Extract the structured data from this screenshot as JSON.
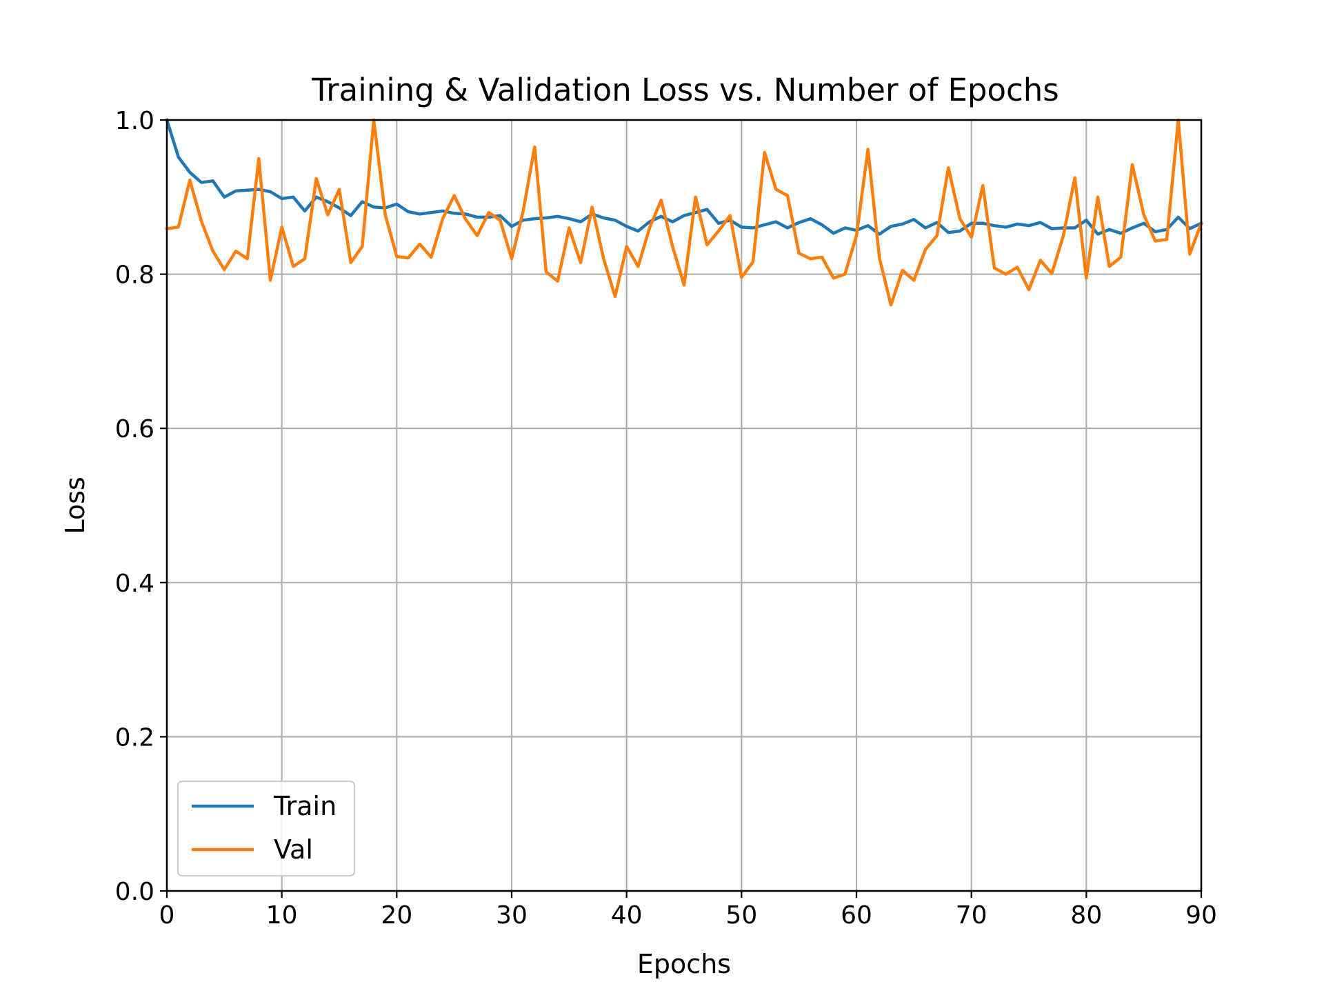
{
  "chart_data": {
    "type": "line",
    "title": "Training & Validation Loss vs. Number of Epochs",
    "xlabel": "Epochs",
    "ylabel": "Loss",
    "xlim": [
      0,
      90
    ],
    "ylim": [
      0.0,
      1.0
    ],
    "xticks": [
      0,
      10,
      20,
      30,
      40,
      50,
      60,
      70,
      80,
      90
    ],
    "xtick_labels": [
      "0",
      "10",
      "20",
      "30",
      "40",
      "50",
      "60",
      "70",
      "80",
      "90"
    ],
    "yticks": [
      0.0,
      0.2,
      0.4,
      0.6,
      0.8,
      1.0
    ],
    "ytick_labels": [
      "0.0",
      "0.2",
      "0.4",
      "0.6",
      "0.8",
      "1.0"
    ],
    "grid": true,
    "legend_position": "lower-left",
    "series": [
      {
        "name": "Train",
        "color": "#1f77b4",
        "x": [
          0,
          1,
          2,
          3,
          4,
          5,
          6,
          7,
          8,
          9,
          10,
          11,
          12,
          13,
          14,
          15,
          16,
          17,
          18,
          19,
          20,
          21,
          22,
          23,
          24,
          25,
          26,
          27,
          28,
          29,
          30,
          31,
          32,
          33,
          34,
          35,
          36,
          37,
          38,
          39,
          40,
          41,
          42,
          43,
          44,
          45,
          46,
          47,
          48,
          49,
          50,
          51,
          52,
          53,
          54,
          55,
          56,
          57,
          58,
          59,
          60,
          61,
          62,
          63,
          64,
          65,
          66,
          67,
          68,
          69,
          70,
          71,
          72,
          73,
          74,
          75,
          76,
          77,
          78,
          79,
          80,
          81,
          82,
          83,
          84,
          85,
          86,
          87,
          88,
          89,
          90
        ],
        "values": [
          1.0,
          0.952,
          0.932,
          0.919,
          0.921,
          0.9,
          0.908,
          0.909,
          0.91,
          0.907,
          0.898,
          0.9,
          0.882,
          0.9,
          0.894,
          0.886,
          0.876,
          0.894,
          0.887,
          0.886,
          0.891,
          0.881,
          0.878,
          0.88,
          0.882,
          0.879,
          0.878,
          0.874,
          0.874,
          0.876,
          0.862,
          0.87,
          0.872,
          0.873,
          0.875,
          0.872,
          0.868,
          0.878,
          0.873,
          0.87,
          0.862,
          0.856,
          0.868,
          0.875,
          0.868,
          0.876,
          0.88,
          0.884,
          0.866,
          0.87,
          0.861,
          0.86,
          0.864,
          0.868,
          0.86,
          0.867,
          0.872,
          0.864,
          0.853,
          0.86,
          0.857,
          0.863,
          0.852,
          0.862,
          0.865,
          0.871,
          0.86,
          0.867,
          0.854,
          0.856,
          0.866,
          0.866,
          0.863,
          0.861,
          0.865,
          0.863,
          0.867,
          0.859,
          0.86,
          0.86,
          0.87,
          0.852,
          0.858,
          0.853,
          0.86,
          0.866,
          0.855,
          0.858,
          0.874,
          0.859,
          0.866
        ]
      },
      {
        "name": "Val",
        "color": "#ff7f0e",
        "x": [
          0,
          1,
          2,
          3,
          4,
          5,
          6,
          7,
          8,
          9,
          10,
          11,
          12,
          13,
          14,
          15,
          16,
          17,
          18,
          19,
          20,
          21,
          22,
          23,
          24,
          25,
          26,
          27,
          28,
          29,
          30,
          31,
          32,
          33,
          34,
          35,
          36,
          37,
          38,
          39,
          40,
          41,
          42,
          43,
          44,
          45,
          46,
          47,
          48,
          49,
          50,
          51,
          52,
          53,
          54,
          55,
          56,
          57,
          58,
          59,
          60,
          61,
          62,
          63,
          64,
          65,
          66,
          67,
          68,
          69,
          70,
          71,
          72,
          73,
          74,
          75,
          76,
          77,
          78,
          79,
          80,
          81,
          82,
          83,
          84,
          85,
          86,
          87,
          88,
          89,
          90
        ],
        "values": [
          0.859,
          0.861,
          0.922,
          0.869,
          0.83,
          0.806,
          0.83,
          0.82,
          0.95,
          0.792,
          0.861,
          0.81,
          0.82,
          0.924,
          0.877,
          0.91,
          0.815,
          0.836,
          1.0,
          0.877,
          0.823,
          0.821,
          0.839,
          0.822,
          0.872,
          0.902,
          0.871,
          0.85,
          0.88,
          0.87,
          0.82,
          0.882,
          0.965,
          0.803,
          0.791,
          0.86,
          0.815,
          0.887,
          0.82,
          0.771,
          0.836,
          0.81,
          0.86,
          0.896,
          0.836,
          0.786,
          0.9,
          0.838,
          0.856,
          0.876,
          0.796,
          0.816,
          0.958,
          0.91,
          0.902,
          0.827,
          0.82,
          0.822,
          0.795,
          0.8,
          0.85,
          0.962,
          0.821,
          0.76,
          0.805,
          0.792,
          0.832,
          0.85,
          0.938,
          0.872,
          0.848,
          0.915,
          0.808,
          0.8,
          0.809,
          0.78,
          0.818,
          0.801,
          0.85,
          0.925,
          0.795,
          0.9,
          0.81,
          0.822,
          0.942,
          0.877,
          0.843,
          0.845,
          1.0,
          0.826,
          0.866
        ]
      }
    ]
  }
}
